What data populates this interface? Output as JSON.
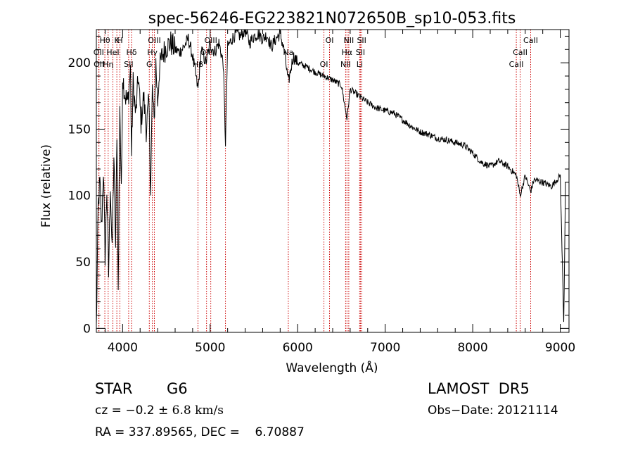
{
  "chart_data": {
    "type": "line",
    "title": "spec-56246-EG223821N072650B_sp10-053.fits",
    "xlabel": "Wavelength (Å)",
    "ylabel": "Flux (relative)",
    "xlim": [
      3700,
      9100
    ],
    "ylim": [
      -3,
      225
    ],
    "xticks": [
      4000,
      5000,
      6000,
      7000,
      8000,
      9000
    ],
    "yticks": [
      0,
      50,
      100,
      150,
      200
    ],
    "grid": false,
    "line_color": "#000000",
    "marker_color": "#cc0000",
    "spectrum": {
      "x": [
        3700,
        3710,
        3720,
        3740,
        3760,
        3780,
        3800,
        3820,
        3840,
        3860,
        3880,
        3900,
        3920,
        3935,
        3950,
        3968,
        3985,
        4000,
        4030,
        4060,
        4090,
        4102,
        4120,
        4150,
        4180,
        4210,
        4240,
        4270,
        4300,
        4320,
        4340,
        4360,
        4380,
        4400,
        4420,
        4450,
        4500,
        4550,
        4600,
        4650,
        4700,
        4750,
        4800,
        4861,
        4900,
        4950,
        5000,
        5050,
        5100,
        5150,
        5175,
        5200,
        5250,
        5300,
        5350,
        5400,
        5450,
        5500,
        5550,
        5600,
        5650,
        5700,
        5750,
        5800,
        5850,
        5893,
        5950,
        6000,
        6100,
        6200,
        6300,
        6400,
        6500,
        6563,
        6600,
        6700,
        6800,
        6900,
        7000,
        7100,
        7200,
        7300,
        7400,
        7500,
        7600,
        7700,
        7800,
        7900,
        8000,
        8100,
        8200,
        8300,
        8400,
        8500,
        8542,
        8600,
        8662,
        8700,
        8800,
        8900,
        9000,
        9020,
        9040,
        9060
      ],
      "y": [
        0,
        40,
        90,
        110,
        75,
        120,
        55,
        105,
        40,
        110,
        55,
        130,
        60,
        150,
        25,
        170,
        100,
        190,
        175,
        170,
        195,
        130,
        185,
        160,
        190,
        155,
        175,
        150,
        170,
        105,
        180,
        155,
        200,
        170,
        195,
        205,
        212,
        215,
        210,
        208,
        212,
        218,
        205,
        180,
        210,
        200,
        214,
        208,
        215,
        200,
        140,
        212,
        218,
        222,
        220,
        225,
        215,
        220,
        222,
        218,
        221,
        212,
        218,
        222,
        208,
        185,
        205,
        200,
        197,
        193,
        190,
        187,
        183,
        158,
        180,
        175,
        170,
        166,
        164,
        162,
        157,
        152,
        148,
        146,
        143,
        142,
        140,
        138,
        132,
        125,
        122,
        126,
        122,
        115,
        100,
        115,
        103,
        112,
        110,
        107,
        115,
        60,
        5,
        110
      ]
    },
    "line_markers": [
      {
        "labels": [
          "Hθ"
        ],
        "x": 3797
      },
      {
        "labels": [
          "OII"
        ],
        "x": 3727
      },
      {
        "labels": [
          "OII"
        ],
        "x": 3730
      },
      {
        "labels": [
          "K"
        ],
        "x": 3934
      },
      {
        "labels": [
          "HeI"
        ],
        "x": 3889
      },
      {
        "labels": [
          "Hη"
        ],
        "x": 3835
      },
      {
        "labels": [
          "H"
        ],
        "x": 3969
      },
      {
        "labels": [
          "Hδ"
        ],
        "x": 4102
      },
      {
        "labels": [
          "SII"
        ],
        "x": 4069
      },
      {
        "labels": [
          "OIII"
        ],
        "x": 4363
      },
      {
        "labels": [
          "Hγ"
        ],
        "x": 4340
      },
      {
        "labels": [
          "G"
        ],
        "x": 4305
      },
      {
        "labels": [
          "OIII"
        ],
        "x": 5007
      },
      {
        "labels": [
          "OIII"
        ],
        "x": 4959
      },
      {
        "labels": [
          "Hβ"
        ],
        "x": 4861
      },
      {
        "labels": [],
        "x": 5175
      },
      {
        "labels": [
          "Na"
        ],
        "x": 5893
      },
      {
        "labels": [
          "OI"
        ],
        "x": 6300
      },
      {
        "labels": [
          "OI"
        ],
        "x": 6364
      },
      {
        "labels": [
          "Hα"
        ],
        "x": 6563
      },
      {
        "labels": [
          "NII"
        ],
        "x": 6548
      },
      {
        "labels": [
          "NII"
        ],
        "x": 6584
      },
      {
        "labels": [
          "SII"
        ],
        "x": 6717
      },
      {
        "labels": [
          "Li"
        ],
        "x": 6708
      },
      {
        "labels": [
          "SII"
        ],
        "x": 6731
      },
      {
        "labels": [
          "CaII"
        ],
        "x": 8542
      },
      {
        "labels": [
          "CaII"
        ],
        "x": 8498
      },
      {
        "labels": [
          "CaII"
        ],
        "x": 8662
      }
    ]
  },
  "info": {
    "class_label": "STAR",
    "subclass": "G6",
    "survey": "LAMOST  DR5",
    "cz_prefix": "cz = −0.2 ± ",
    "cz_value": "6.8 km/s",
    "obs_date": "Obs−Date: 20121114",
    "coords": "RA = 337.89565, DEC =    6.70887"
  }
}
